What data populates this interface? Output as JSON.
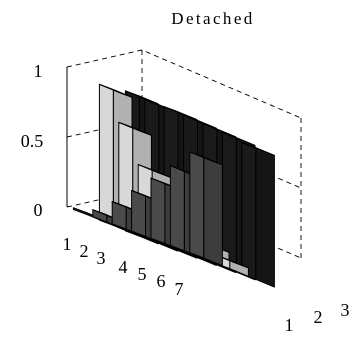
{
  "chart_data": {
    "type": "bar3d",
    "title": "Detached",
    "z_ticks": [
      "0",
      "0.5",
      "1"
    ],
    "zlim": [
      0,
      1
    ],
    "row_categories": [
      "1",
      "2",
      "3",
      "4",
      "5",
      "6",
      "7"
    ],
    "column_categories": [
      "1",
      "2",
      "3"
    ],
    "series": [
      {
        "values": [
          0.0,
          0.05,
          0.16,
          0.29,
          0.43,
          0.57,
          0.72
        ]
      },
      {
        "values": [
          0.97,
          0.75,
          0.5,
          0.38,
          0.22,
          0.12,
          0.06
        ]
      },
      {
        "values": [
          1.0,
          0.99,
          0.99,
          0.98,
          0.97,
          0.96,
          0.94
        ]
      }
    ],
    "colors": [
      "#4a4a4a",
      "#d8d8d8",
      "#1a1a1a"
    ],
    "grid": true
  }
}
